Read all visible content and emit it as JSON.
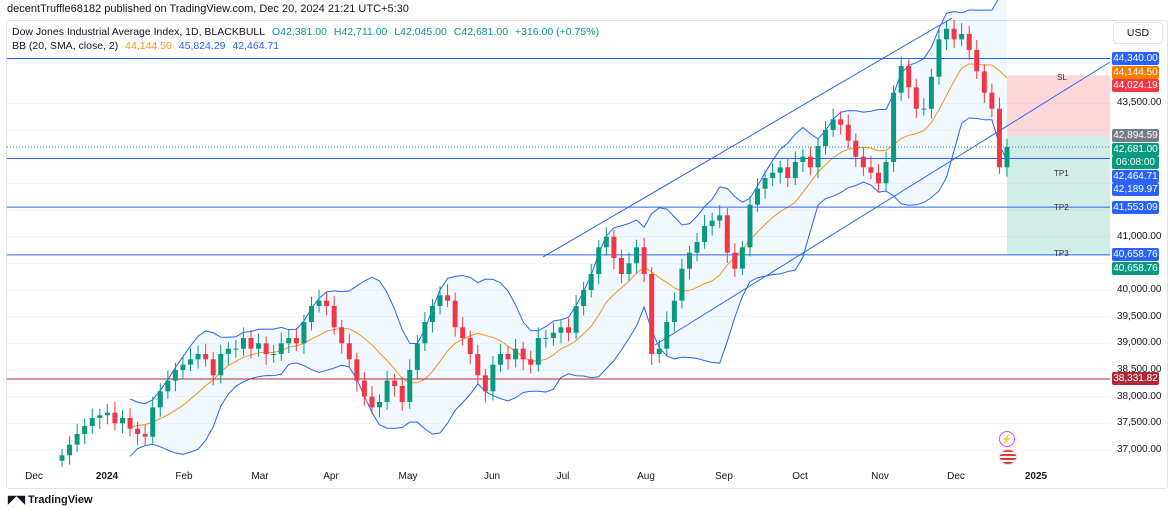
{
  "publish_line": "decentTruffle68182 published on TradingView.com, Dec 20, 2024 21:21 UTC+5:30",
  "legend": {
    "symbol": "Dow Jones Industrial Average Index, 1D, BLACKBULL",
    "o": "O42,381.00",
    "h": "H42,711.00",
    "l": "L42,045.00",
    "c": "C42,681.00",
    "change": "+316.00 (+0.75%)",
    "bb_label": "BB (20, SMA, close, 2)",
    "bb_basis": "44,144.50",
    "bb_upper": "45,824.29",
    "bb_lower": "42,464.71"
  },
  "currency_button": "USD",
  "price_ticks": [
    "43,500.00",
    "41,000.00",
    "40,000.00",
    "39,500.00",
    "39,000.00",
    "38,500.00",
    "38,000.00",
    "37,500.00",
    "37,000.00"
  ],
  "price_tags": [
    {
      "text": "44,340.00",
      "color": "#2962ff",
      "price": 44340
    },
    {
      "text": "44,144.50",
      "color": "#f57c00",
      "price": 44144.5
    },
    {
      "text": "44,024.19",
      "color": "#f23645",
      "price": 44024.19
    },
    {
      "text": "42,894.59",
      "color": "#787b86",
      "price": 42894.59
    },
    {
      "text": "42,681.00",
      "color": "#089981",
      "price": 42681
    },
    {
      "text": "06:08:00",
      "color": "#089981",
      "price": 42681
    },
    {
      "text": "42,464.71",
      "color": "#2962ff",
      "price": 42464.71
    },
    {
      "text": "42,189.97",
      "color": "#2962ff",
      "price": 42189.97
    },
    {
      "text": "41,553.09",
      "color": "#2962ff",
      "price": 41553.09
    },
    {
      "text": "40,658.76",
      "color": "#2962ff",
      "price": 40658.76
    },
    {
      "text": "40,658.76",
      "color": "#089981",
      "price": 40658.76
    },
    {
      "text": "38,331.82",
      "color": "#b22833",
      "price": 38331.82
    }
  ],
  "time_labels": [
    "Dec",
    "2024",
    "Feb",
    "Mar",
    "Apr",
    "May",
    "Jun",
    "Jul",
    "Aug",
    "Sep",
    "Oct",
    "Nov",
    "Dec",
    "2025"
  ],
  "levels": {
    "sl": "SL",
    "tp1": "TP1",
    "tp2": "TP2",
    "tp3": "TP3"
  },
  "brand": "TradingView",
  "colors": {
    "up": "#089981",
    "down": "#f23645",
    "basis": "#f7931a",
    "band": "#2962ff"
  },
  "chart_data": {
    "type": "candlestick",
    "title": "Dow Jones Industrial Average Index, 1D, BLACKBULL",
    "x_range": [
      "Dec 2023",
      "Dec 20, 2024"
    ],
    "ylim": [
      36700,
      45200
    ],
    "closes": [
      36900,
      37100,
      37300,
      37450,
      37600,
      37650,
      37700,
      37500,
      37600,
      37400,
      37300,
      37250,
      37800,
      38100,
      38300,
      38500,
      38600,
      38700,
      38800,
      38700,
      38400,
      38800,
      38900,
      38900,
      39100,
      38900,
      39000,
      38800,
      38800,
      39000,
      39100,
      39000,
      39400,
      39700,
      39800,
      39700,
      39300,
      39000,
      38700,
      38300,
      38000,
      37800,
      37900,
      38300,
      38200,
      37900,
      38500,
      39000,
      39400,
      39700,
      39900,
      39800,
      39300,
      39100,
      38800,
      38400,
      38100,
      38600,
      38800,
      38700,
      38900,
      38700,
      38600,
      39100,
      39100,
      39200,
      39300,
      39200,
      39700,
      40000,
      40300,
      40800,
      41000,
      40600,
      40300,
      40500,
      40800,
      40300,
      38800,
      38900,
      39400,
      39800,
      40400,
      40700,
      40900,
      41200,
      41300,
      41400,
      40700,
      40400,
      40800,
      41600,
      41900,
      42100,
      42200,
      42300,
      42100,
      42400,
      42500,
      42300,
      42700,
      43000,
      43200,
      43100,
      42800,
      42500,
      42300,
      42200,
      42000,
      42400,
      43700,
      44200,
      43800,
      43400,
      43400,
      44000,
      44700,
      44900,
      44700,
      44800,
      44500,
      44100,
      43700,
      43400,
      42300,
      42681
    ],
    "horizontal_lines": [
      44340,
      42464.71,
      41553.09,
      40658.76,
      38331.82
    ],
    "trade_zone": {
      "stop_loss": 44024.19,
      "entry": 42894.59,
      "tp1": 42464.71,
      "tp2": 41553.09,
      "tp3": 40658.76
    }
  }
}
